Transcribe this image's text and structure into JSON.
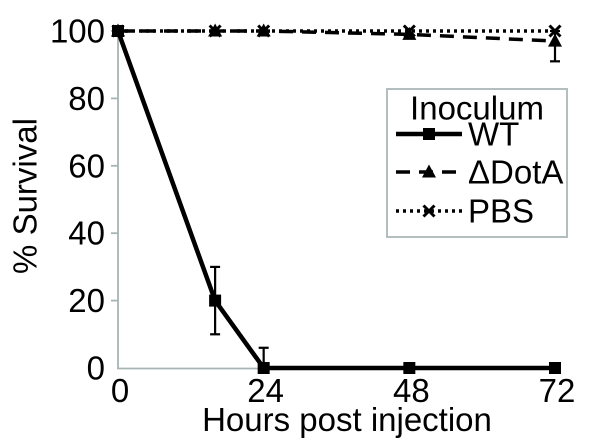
{
  "figure": {
    "background": "#ffffff",
    "axis_color": "#a7b4b4",
    "text_color": "#000000",
    "series_color": "#000000",
    "legend_border_color": "#b4bebe"
  },
  "chart_data": {
    "type": "line",
    "title": "",
    "xlabel": "Hours post injection",
    "ylabel": "% Survival",
    "xlim": [
      0,
      72
    ],
    "ylim": [
      0,
      100
    ],
    "x_ticks": [
      0,
      24,
      48,
      72
    ],
    "x_tick_labels": [
      "0",
      "24",
      "48",
      "72"
    ],
    "y_ticks": [
      0,
      20,
      40,
      60,
      80,
      100
    ],
    "y_tick_labels": [
      "0",
      "20",
      "40",
      "60",
      "80",
      "100"
    ],
    "grid": false,
    "legend": {
      "title": "Inoculum",
      "position": "upper right",
      "entries": [
        "WT",
        "ΔDotA",
        "PBS"
      ]
    },
    "series": [
      {
        "name": "WT",
        "marker": "square",
        "line_style": "solid",
        "x": [
          0,
          16,
          24,
          48,
          72
        ],
        "y": [
          100,
          20,
          0,
          0,
          0
        ],
        "error_plus": [
          0,
          10,
          6,
          0,
          0
        ],
        "error_minus": [
          0,
          10,
          0,
          0,
          0
        ]
      },
      {
        "name": "ΔDotA",
        "marker": "triangle",
        "line_style": "dashed",
        "x": [
          0,
          16,
          24,
          48,
          72
        ],
        "y": [
          100,
          100,
          100,
          99,
          97
        ],
        "error_plus": [
          0,
          0,
          0,
          0,
          3
        ],
        "error_minus": [
          0,
          0,
          0,
          0,
          6
        ]
      },
      {
        "name": "PBS",
        "marker": "x",
        "line_style": "dotted",
        "x": [
          0,
          16,
          24,
          48,
          72
        ],
        "y": [
          100,
          100,
          100,
          100,
          100
        ],
        "error_plus": [
          0,
          0,
          0,
          0,
          0
        ],
        "error_minus": [
          0,
          0,
          0,
          0,
          0
        ]
      }
    ]
  }
}
